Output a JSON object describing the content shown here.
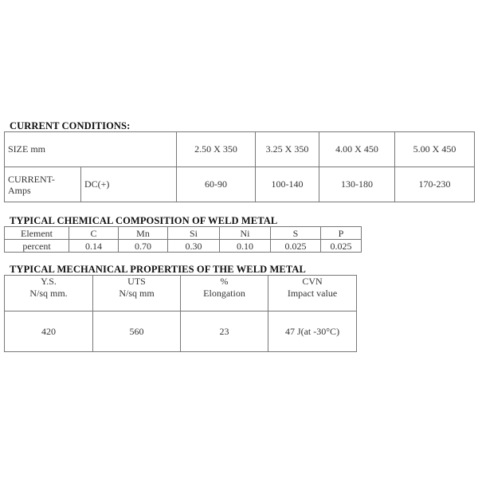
{
  "current_conditions": {
    "title": "CURRENT CONDITIONS:",
    "size_label": "SIZE mm",
    "sizes": [
      "2.50 X 350",
      "3.25 X 350",
      "4.00 X 450",
      "5.00 X 450"
    ],
    "current_label_line1": "CURRENT-",
    "current_label_line2": "Amps",
    "polarity": "DC(+)",
    "currents": [
      "60-90",
      "100-140",
      "130-180",
      "170-230"
    ]
  },
  "chemical": {
    "title": "TYPICAL CHEMICAL COMPOSITION OF WELD METAL",
    "header_label": "Element",
    "row_label": "percent",
    "elements": [
      "C",
      "Mn",
      "Si",
      "Ni",
      "S",
      "P"
    ],
    "values": [
      "0.14",
      "0.70",
      "0.30",
      "0.10",
      "0.025",
      "0.025"
    ]
  },
  "mechanical": {
    "title": "TYPICAL MECHANICAL PROPERTIES OF THE WELD METAL",
    "headers": [
      {
        "line1": "Y.S.",
        "line2": "N/sq mm."
      },
      {
        "line1": "UTS",
        "line2": "N/sq mm"
      },
      {
        "line1": "%",
        "line2": "Elongation"
      },
      {
        "line1": "CVN",
        "line2": "Impact value"
      }
    ],
    "values": [
      "420",
      "560",
      "23",
      "47 J(at -30°C)"
    ]
  }
}
